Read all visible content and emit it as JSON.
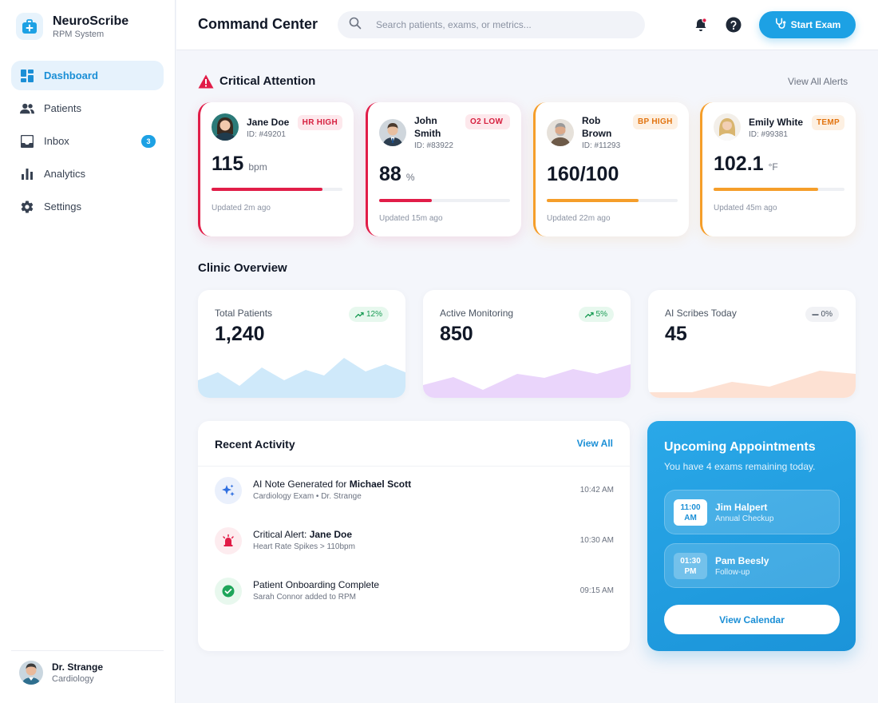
{
  "brand": {
    "name": "NeuroScribe",
    "subtitle": "RPM System"
  },
  "nav": [
    {
      "label": "Dashboard",
      "icon": "dashboard-icon",
      "active": true
    },
    {
      "label": "Patients",
      "icon": "patients-icon"
    },
    {
      "label": "Inbox",
      "icon": "inbox-icon",
      "badge": "3"
    },
    {
      "label": "Analytics",
      "icon": "analytics-icon"
    },
    {
      "label": "Settings",
      "icon": "gear-icon"
    }
  ],
  "user": {
    "name": "Dr. Strange",
    "role": "Cardiology"
  },
  "header": {
    "title": "Command Center",
    "search_placeholder": "Search patients, exams, or metrics...",
    "start_label": "Start Exam"
  },
  "critical": {
    "title": "Critical Attention",
    "view_all": "View All Alerts",
    "cards": [
      {
        "name": "Jane Doe",
        "id": "ID: #49201",
        "badge": "HR HIGH",
        "value": "115",
        "unit": "bpm",
        "level": 0.85,
        "updated": "Updated 2m ago",
        "severity": "red"
      },
      {
        "name": "John Smith",
        "id": "ID: #83922",
        "badge": "O2 LOW",
        "value": "88",
        "unit": "%",
        "level": 0.4,
        "updated": "Updated 15m ago",
        "severity": "red"
      },
      {
        "name": "Rob Brown",
        "id": "ID: #11293",
        "badge": "BP HIGH",
        "value": "160/100",
        "unit": "",
        "level": 0.7,
        "updated": "Updated 22m ago",
        "severity": "orange"
      },
      {
        "name": "Emily White",
        "id": "ID: #99381",
        "badge": "TEMP",
        "value": "102.1",
        "unit": "°F",
        "level": 0.8,
        "updated": "Updated 45m ago",
        "severity": "orange"
      }
    ]
  },
  "overview": {
    "title": "Clinic Overview",
    "stats": [
      {
        "label": "Total Patients",
        "value": "1,240",
        "trend": "12%",
        "trend_dir": "up",
        "color": "#cfe9fa"
      },
      {
        "label": "Active Monitoring",
        "value": "850",
        "trend": "5%",
        "trend_dir": "up",
        "color": "#ead5fb"
      },
      {
        "label": "AI Scribes Today",
        "value": "45",
        "trend": "0%",
        "trend_dir": "flat",
        "color": "#fde1d3"
      }
    ]
  },
  "activity": {
    "title": "Recent Activity",
    "view_all": "View All",
    "items": [
      {
        "text": "AI Note Generated for ",
        "bold": "Michael Scott",
        "sub": "Cardiology Exam • Dr. Strange",
        "time": "10:42 AM",
        "icon": "sparkle-icon"
      },
      {
        "text": "Critical Alert: ",
        "bold": "Jane Doe",
        "sub": "Heart Rate Spikes > 110bpm",
        "time": "10:30 AM",
        "icon": "alarm-icon"
      },
      {
        "text": "Patient Onboarding Complete",
        "bold": "",
        "sub": "Sarah Connor added to RPM",
        "time": "09:15 AM",
        "icon": "check-circle-icon"
      }
    ]
  },
  "appointments": {
    "title": "Upcoming Appointments",
    "subtitle": "You have 4 exams remaining today.",
    "items": [
      {
        "time": "11:00",
        "ampm": "AM",
        "name": "Jim Halpert",
        "type": "Annual Checkup"
      },
      {
        "time": "01:30",
        "ampm": "PM",
        "name": "Pam Beesly",
        "type": "Follow-up"
      }
    ],
    "button": "View Calendar"
  },
  "colors": {
    "accent": "#1da1e4",
    "critical_red": "#e11d48",
    "warning_orange": "#f59e2a"
  }
}
